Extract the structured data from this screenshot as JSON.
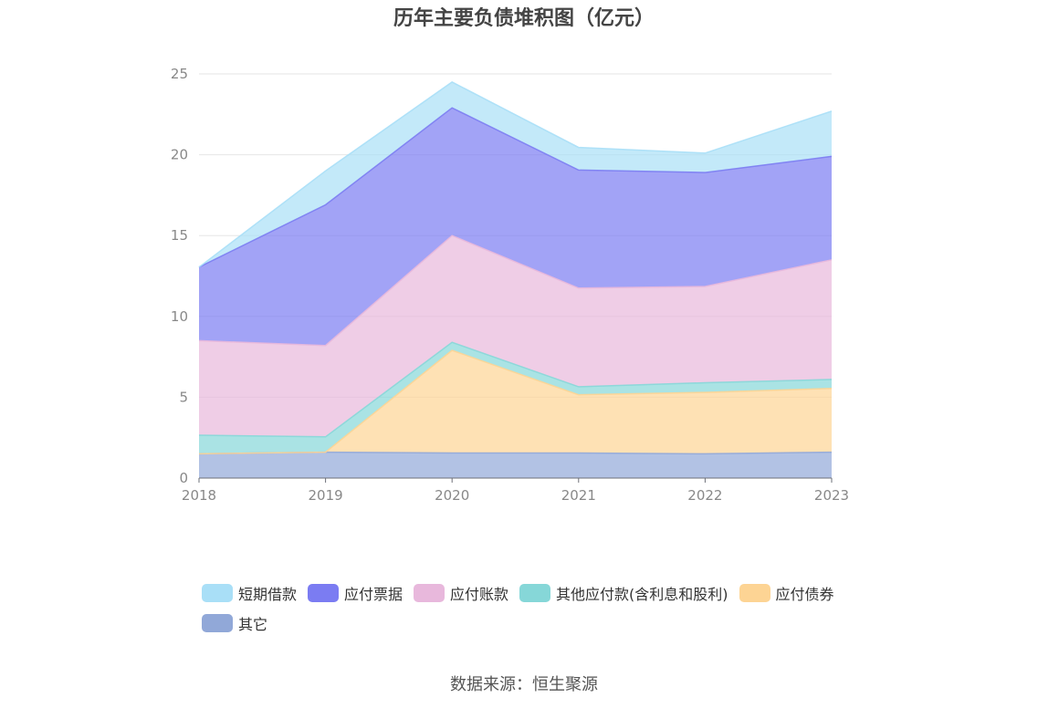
{
  "chart_data": {
    "type": "area",
    "stacked": true,
    "title": "历年主要负债堆积图（亿元）",
    "x": [
      "2018",
      "2019",
      "2020",
      "2021",
      "2022",
      "2023"
    ],
    "ylim": [
      0,
      25
    ],
    "yticks": [
      "0",
      "5",
      "10",
      "15",
      "20",
      "25"
    ],
    "grid": true,
    "legend_position": "bottom",
    "series": [
      {
        "name": "其它",
        "color": "#91a8d8",
        "values": [
          1.5,
          1.6,
          1.55,
          1.55,
          1.5,
          1.6
        ]
      },
      {
        "name": "应付债券",
        "color": "#fdd494",
        "values": [
          0,
          0,
          6.35,
          3.6,
          3.8,
          3.95
        ]
      },
      {
        "name": "其他应付款(含利息和股利)",
        "color": "#86d7d8",
        "values": [
          1.15,
          0.95,
          0.5,
          0.5,
          0.6,
          0.55
        ]
      },
      {
        "name": "应付账款",
        "color": "#e8b8dc",
        "values": [
          5.85,
          5.65,
          6.6,
          6.1,
          5.95,
          7.4
        ]
      },
      {
        "name": "应付票据",
        "color": "#7b7cf2",
        "values": [
          4.55,
          8.7,
          7.9,
          7.3,
          7.05,
          6.4
        ]
      },
      {
        "name": "短期借款",
        "color": "#a9dff7",
        "values": [
          0,
          2.1,
          1.6,
          1.4,
          1.2,
          2.8
        ]
      }
    ]
  },
  "legend_order": [
    5,
    4,
    3,
    2,
    1,
    0
  ],
  "source_text": "数据来源：恒生聚源"
}
